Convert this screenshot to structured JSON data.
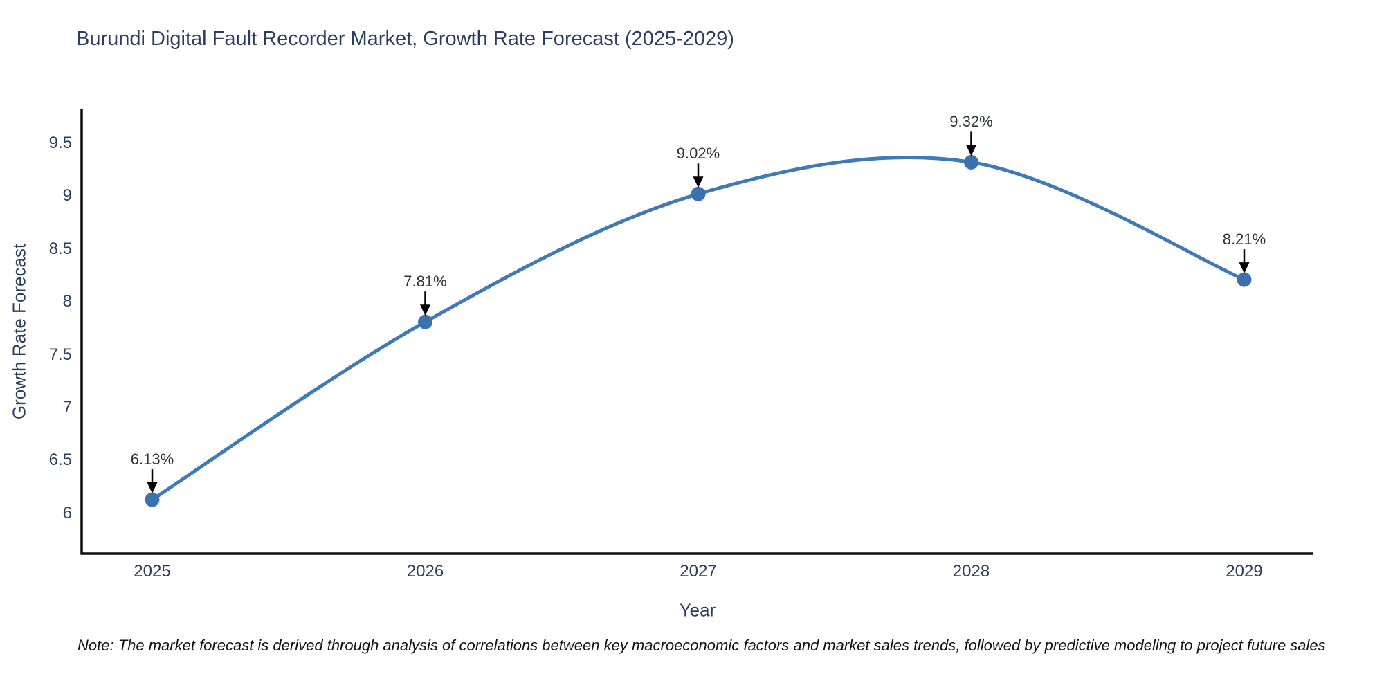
{
  "title": "Burundi Digital Fault Recorder Market, Growth Rate Forecast (2025-2029)",
  "note": "Note: The market forecast is derived through analysis of correlations between key macroeconomic factors and market sales trends, followed by predictive modeling to project future sales",
  "chart_data": {
    "type": "line",
    "title": "Burundi Digital Fault Recorder Market, Growth Rate Forecast (2025-2029)",
    "xlabel": "Year",
    "ylabel": "Growth Rate Forecast",
    "categories": [
      "2025",
      "2026",
      "2027",
      "2028",
      "2029"
    ],
    "values": [
      6.13,
      7.81,
      9.02,
      9.32,
      8.21
    ],
    "point_labels": [
      "6.13%",
      "7.81%",
      "9.02%",
      "9.32%",
      "8.21%"
    ],
    "y_tick_values": [
      6,
      6.5,
      7,
      7.5,
      8,
      8.5,
      9,
      9.5
    ],
    "y_tick_labels": [
      "6",
      "6.5",
      "7",
      "7.5",
      "8",
      "8.5",
      "9",
      "9.5"
    ],
    "ylim": [
      5.62,
      9.82
    ],
    "grid": false,
    "legend_position": "none",
    "line_shape": "spline",
    "colors": {
      "line": "#3f79b6",
      "marker": "#3a72ad",
      "axis": "#0d0d0d",
      "arrow": "#000000",
      "text": "#2a3f5f",
      "annotation": "#2f3338",
      "background": "#ffffff"
    }
  }
}
